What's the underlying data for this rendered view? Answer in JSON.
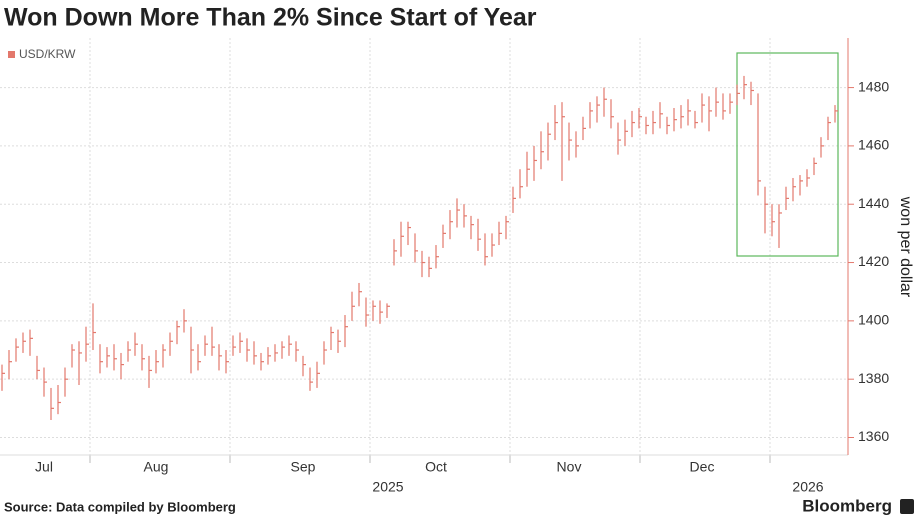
{
  "chart_data": {
    "type": "ohlc",
    "title": "Won Down More Than 2% Since Start of Year",
    "y_label": "won per dollar",
    "source": "Source: Data compiled by Bloomberg",
    "brand": "Bloomberg",
    "year_labels": [
      "2025",
      "2026"
    ],
    "ylim": [
      1354,
      1497
    ],
    "yticks": [
      1360,
      1380,
      1400,
      1420,
      1440,
      1460,
      1480
    ],
    "grid": true,
    "highlight_color": "#5cb85c",
    "categories": [
      null,
      null,
      null,
      null,
      null,
      null,
      "Jul",
      null,
      null,
      null,
      null,
      null,
      null,
      null,
      null,
      null,
      null,
      null,
      null,
      null,
      null,
      null,
      "Aug",
      null,
      null,
      null,
      null,
      null,
      null,
      null,
      null,
      null,
      null,
      null,
      null,
      null,
      null,
      null,
      null,
      null,
      null,
      null,
      null,
      "Sep",
      null,
      null,
      null,
      null,
      null,
      null,
      null,
      null,
      null,
      null,
      null,
      null,
      null,
      null,
      null,
      null,
      null,
      null,
      "Oct",
      null,
      null,
      null,
      null,
      null,
      null,
      null,
      null,
      null,
      null,
      null,
      null,
      null,
      null,
      null,
      null,
      null,
      null,
      "Nov",
      null,
      null,
      null,
      null,
      null,
      null,
      null,
      null,
      null,
      null,
      null,
      null,
      null,
      null,
      null,
      null,
      null,
      null,
      "Dec",
      null,
      null,
      null,
      null,
      null,
      null,
      null,
      null,
      null,
      null,
      null,
      null,
      null,
      null,
      null,
      null,
      null,
      null,
      null
    ],
    "series": [
      {
        "name": "USD/KRW",
        "color": "#e3786c",
        "high": [
          1385,
          1390,
          1394,
          1396,
          1397,
          1388,
          1384,
          1377,
          1378,
          1384,
          1392,
          1393,
          1398,
          1406,
          1392,
          1391,
          1392,
          1389,
          1393,
          1396,
          1392,
          1388,
          1390,
          1392,
          1396,
          1400,
          1404,
          1398,
          1392,
          1395,
          1398,
          1392,
          1390,
          1395,
          1396,
          1394,
          1393,
          1389,
          1391,
          1392,
          1393,
          1395,
          1393,
          1388,
          1384,
          1386,
          1393,
          1398,
          1397,
          1402,
          1410,
          1413,
          1408,
          1407,
          1407,
          1406,
          1428,
          1434,
          1434,
          1430,
          1424,
          1422,
          1426,
          1433,
          1438,
          1442,
          1440,
          1436,
          1435,
          1430,
          1430,
          1434,
          1436,
          1446,
          1452,
          1458,
          1460,
          1465,
          1468,
          1474,
          1475,
          1468,
          1465,
          1470,
          1475,
          1477,
          1480,
          1476,
          1468,
          1469,
          1472,
          1473,
          1470,
          1472,
          1475,
          1470,
          1473,
          1474,
          1476,
          1472,
          1478,
          1477,
          1480,
          1478,
          1478,
          1481,
          1484,
          1482,
          1478,
          1446,
          1440,
          1440,
          1446,
          1449,
          1450,
          1452,
          1456,
          1463,
          1470,
          1474
        ],
        "low": [
          1376,
          1380,
          1386,
          1389,
          1388,
          1380,
          1374,
          1366,
          1368,
          1374,
          1384,
          1378,
          1386,
          1390,
          1382,
          1384,
          1383,
          1380,
          1386,
          1388,
          1383,
          1377,
          1382,
          1384,
          1388,
          1392,
          1396,
          1382,
          1383,
          1388,
          1388,
          1383,
          1382,
          1388,
          1389,
          1386,
          1385,
          1383,
          1385,
          1386,
          1387,
          1388,
          1386,
          1381,
          1376,
          1377,
          1385,
          1390,
          1389,
          1391,
          1400,
          1405,
          1398,
          1400,
          1399,
          1401,
          1419,
          1422,
          1426,
          1420,
          1415,
          1415,
          1418,
          1425,
          1428,
          1432,
          1432,
          1428,
          1424,
          1419,
          1422,
          1426,
          1428,
          1437,
          1442,
          1446,
          1448,
          1452,
          1455,
          1462,
          1448,
          1455,
          1456,
          1462,
          1466,
          1468,
          1470,
          1466,
          1457,
          1460,
          1463,
          1466,
          1464,
          1464,
          1466,
          1464,
          1465,
          1466,
          1467,
          1466,
          1468,
          1465,
          1470,
          1469,
          1471,
          1474,
          1476,
          1474,
          1443,
          1430,
          1429,
          1425,
          1438,
          1441,
          1443,
          1446,
          1450,
          1456,
          1462,
          1468
        ],
        "close": [
          1382,
          1386,
          1391,
          1393,
          1394,
          1383,
          1379,
          1370,
          1372,
          1380,
          1390,
          1389,
          1392,
          1396,
          1386,
          1388,
          1387,
          1385,
          1390,
          1392,
          1387,
          1383,
          1386,
          1390,
          1393,
          1398,
          1400,
          1390,
          1386,
          1392,
          1391,
          1388,
          1386,
          1391,
          1393,
          1390,
          1388,
          1386,
          1388,
          1389,
          1391,
          1392,
          1390,
          1385,
          1379,
          1382,
          1390,
          1396,
          1393,
          1398,
          1405,
          1410,
          1402,
          1405,
          1403,
          1405,
          1424,
          1429,
          1432,
          1424,
          1420,
          1418,
          1422,
          1430,
          1434,
          1438,
          1436,
          1433,
          1428,
          1422,
          1426,
          1430,
          1434,
          1442,
          1446,
          1452,
          1455,
          1458,
          1464,
          1468,
          1470,
          1462,
          1460,
          1466,
          1472,
          1474,
          1476,
          1470,
          1462,
          1465,
          1468,
          1470,
          1467,
          1468,
          1471,
          1467,
          1469,
          1470,
          1472,
          1468,
          1474,
          1472,
          1475,
          1472,
          1475,
          1478,
          1481,
          1479,
          1448,
          1440,
          1434,
          1437,
          1442,
          1446,
          1448,
          1449,
          1454,
          1460,
          1468,
          1472
        ]
      }
    ]
  }
}
